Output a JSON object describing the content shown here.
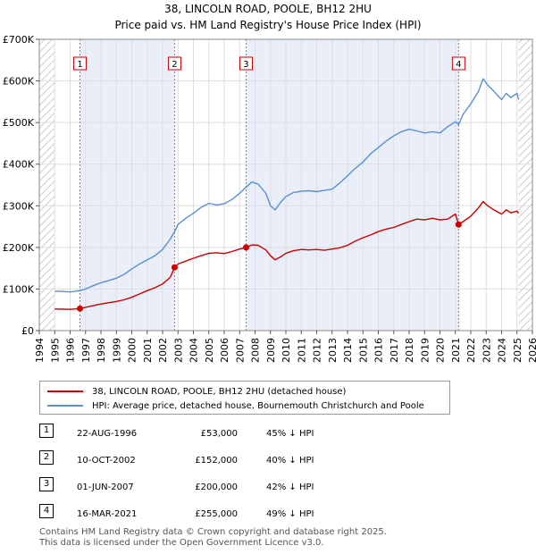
{
  "chart_data": {
    "type": "line",
    "title": "38, LINCOLN ROAD, POOLE, BH12 2HU",
    "subtitle": "Price paid vs. HM Land Registry's House Price Index (HPI)",
    "x_range": [
      1994,
      2026
    ],
    "y_range": [
      0,
      700000
    ],
    "x_ticks": [
      "1994",
      "1995",
      "1996",
      "1997",
      "1998",
      "1999",
      "2000",
      "2001",
      "2002",
      "2003",
      "2004",
      "2005",
      "2006",
      "2007",
      "2008",
      "2009",
      "2010",
      "2011",
      "2012",
      "2013",
      "2014",
      "2015",
      "2016",
      "2017",
      "2018",
      "2019",
      "2020",
      "2021",
      "2022",
      "2023",
      "2024",
      "2025",
      "2026"
    ],
    "y_ticks": [
      {
        "value": 0,
        "label": "£0"
      },
      {
        "value": 100000,
        "label": "£100K"
      },
      {
        "value": 200000,
        "label": "£200K"
      },
      {
        "value": 300000,
        "label": "£300K"
      },
      {
        "value": 400000,
        "label": "£400K"
      },
      {
        "value": 500000,
        "label": "£500K"
      },
      {
        "value": 600000,
        "label": "£600K"
      },
      {
        "value": 700000,
        "label": "£700K"
      }
    ],
    "hatched_ranges": [
      [
        1994,
        1995
      ],
      [
        2025.1,
        2026
      ]
    ],
    "shaded_ranges": [
      [
        1996.64,
        2002.78
      ],
      [
        2007.42,
        2021.21
      ]
    ],
    "grid": true,
    "colors": {
      "property": "#cc0000",
      "hpi": "#5b8fd4",
      "vline": "#e06060",
      "shade": "#e9eef9",
      "hatch": "#cccccc"
    },
    "series": [
      {
        "name": "38, LINCOLN ROAD, POOLE, BH12 2HU (detached house)",
        "color": "#cc0000",
        "points": [
          [
            1995,
            52000
          ],
          [
            1995.5,
            51500
          ],
          [
            1996,
            51000
          ],
          [
            1996.64,
            53000
          ],
          [
            1997,
            56000
          ],
          [
            1997.5,
            60000
          ],
          [
            1998,
            64000
          ],
          [
            1998.5,
            67000
          ],
          [
            1999,
            70000
          ],
          [
            1999.5,
            74000
          ],
          [
            2000,
            80000
          ],
          [
            2000.5,
            88000
          ],
          [
            2001,
            96000
          ],
          [
            2001.5,
            103000
          ],
          [
            2002,
            112000
          ],
          [
            2002.5,
            128000
          ],
          [
            2002.78,
            152000
          ],
          [
            2003,
            160000
          ],
          [
            2003.5,
            167000
          ],
          [
            2004,
            174000
          ],
          [
            2004.5,
            180000
          ],
          [
            2005,
            186000
          ],
          [
            2005.5,
            187000
          ],
          [
            2006,
            185000
          ],
          [
            2006.5,
            190000
          ],
          [
            2007,
            196000
          ],
          [
            2007.42,
            200000
          ],
          [
            2007.8,
            206000
          ],
          [
            2008.2,
            205000
          ],
          [
            2008.7,
            194000
          ],
          [
            2009,
            180000
          ],
          [
            2009.3,
            170000
          ],
          [
            2009.7,
            178000
          ],
          [
            2010,
            186000
          ],
          [
            2010.5,
            192000
          ],
          [
            2011,
            195000
          ],
          [
            2011.5,
            194000
          ],
          [
            2012,
            195000
          ],
          [
            2012.5,
            193000
          ],
          [
            2013,
            196000
          ],
          [
            2013.5,
            199000
          ],
          [
            2014,
            205000
          ],
          [
            2014.5,
            215000
          ],
          [
            2015,
            223000
          ],
          [
            2015.5,
            230000
          ],
          [
            2016,
            238000
          ],
          [
            2016.5,
            244000
          ],
          [
            2017,
            248000
          ],
          [
            2017.5,
            255000
          ],
          [
            2018,
            262000
          ],
          [
            2018.5,
            268000
          ],
          [
            2019,
            266000
          ],
          [
            2019.5,
            270000
          ],
          [
            2020,
            266000
          ],
          [
            2020.5,
            268000
          ],
          [
            2021,
            280000
          ],
          [
            2021.21,
            255000
          ],
          [
            2021.5,
            262000
          ],
          [
            2022,
            275000
          ],
          [
            2022.5,
            295000
          ],
          [
            2022.8,
            310000
          ],
          [
            2023.1,
            300000
          ],
          [
            2023.5,
            290000
          ],
          [
            2024,
            280000
          ],
          [
            2024.3,
            290000
          ],
          [
            2024.6,
            283000
          ],
          [
            2025,
            287000
          ],
          [
            2025.1,
            282000
          ]
        ]
      },
      {
        "name": "HPI: Average price, detached house, Bournemouth Christchurch and Poole",
        "color": "#5b8fd4",
        "points": [
          [
            1995,
            95000
          ],
          [
            1995.5,
            94000
          ],
          [
            1996,
            93000
          ],
          [
            1996.64,
            96000
          ],
          [
            1997,
            100000
          ],
          [
            1997.5,
            108000
          ],
          [
            1998,
            115000
          ],
          [
            1998.5,
            120000
          ],
          [
            1999,
            126000
          ],
          [
            1999.5,
            135000
          ],
          [
            2000,
            148000
          ],
          [
            2000.5,
            160000
          ],
          [
            2001,
            170000
          ],
          [
            2001.5,
            180000
          ],
          [
            2002,
            195000
          ],
          [
            2002.5,
            220000
          ],
          [
            2002.78,
            238000
          ],
          [
            2003,
            255000
          ],
          [
            2003.5,
            270000
          ],
          [
            2004,
            282000
          ],
          [
            2004.5,
            296000
          ],
          [
            2005,
            306000
          ],
          [
            2005.5,
            302000
          ],
          [
            2006,
            305000
          ],
          [
            2006.5,
            315000
          ],
          [
            2007,
            330000
          ],
          [
            2007.42,
            345000
          ],
          [
            2007.8,
            357000
          ],
          [
            2008.2,
            352000
          ],
          [
            2008.7,
            330000
          ],
          [
            2009,
            300000
          ],
          [
            2009.3,
            290000
          ],
          [
            2009.7,
            310000
          ],
          [
            2010,
            322000
          ],
          [
            2010.5,
            332000
          ],
          [
            2011,
            335000
          ],
          [
            2011.5,
            336000
          ],
          [
            2012,
            334000
          ],
          [
            2012.5,
            337000
          ],
          [
            2013,
            340000
          ],
          [
            2013.5,
            355000
          ],
          [
            2014,
            372000
          ],
          [
            2014.5,
            390000
          ],
          [
            2015,
            405000
          ],
          [
            2015.5,
            425000
          ],
          [
            2016,
            440000
          ],
          [
            2016.5,
            455000
          ],
          [
            2017,
            468000
          ],
          [
            2017.5,
            478000
          ],
          [
            2018,
            484000
          ],
          [
            2018.5,
            480000
          ],
          [
            2019,
            475000
          ],
          [
            2019.5,
            478000
          ],
          [
            2020,
            475000
          ],
          [
            2020.5,
            490000
          ],
          [
            2021,
            502000
          ],
          [
            2021.21,
            495000
          ],
          [
            2021.5,
            520000
          ],
          [
            2022,
            545000
          ],
          [
            2022.5,
            575000
          ],
          [
            2022.8,
            605000
          ],
          [
            2023.1,
            590000
          ],
          [
            2023.5,
            575000
          ],
          [
            2024,
            555000
          ],
          [
            2024.3,
            570000
          ],
          [
            2024.6,
            560000
          ],
          [
            2025,
            570000
          ],
          [
            2025.1,
            555000
          ]
        ]
      }
    ],
    "sale_markers": [
      {
        "label": "1",
        "x": 1996.64,
        "y": 53000
      },
      {
        "label": "2",
        "x": 2002.78,
        "y": 152000
      },
      {
        "label": "3",
        "x": 2007.42,
        "y": 200000
      },
      {
        "label": "4",
        "x": 2021.21,
        "y": 255000
      }
    ]
  },
  "legend": {
    "property": "38, LINCOLN ROAD, POOLE, BH12 2HU (detached house)",
    "hpi": "HPI: Average price, detached house, Bournemouth Christchurch and Poole"
  },
  "sales": [
    {
      "num": "1",
      "date": "22-AUG-1996",
      "price": "£53,000",
      "hpi": "45% ↓ HPI"
    },
    {
      "num": "2",
      "date": "10-OCT-2002",
      "price": "£152,000",
      "hpi": "40% ↓ HPI"
    },
    {
      "num": "3",
      "date": "01-JUN-2007",
      "price": "£200,000",
      "hpi": "42% ↓ HPI"
    },
    {
      "num": "4",
      "date": "16-MAR-2021",
      "price": "£255,000",
      "hpi": "49% ↓ HPI"
    }
  ],
  "footer": {
    "line1": "Contains HM Land Registry data © Crown copyright and database right 2025.",
    "line2": "This data is licensed under the Open Government Licence v3.0."
  }
}
